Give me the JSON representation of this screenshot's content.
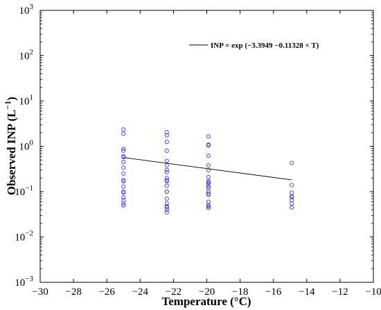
{
  "chart_data": {
    "type": "scatter",
    "title": "",
    "xlabel": "Temperature (°C)",
    "ylabel": "Observed INP (L",
    "ylabel_unit_sup": "−1",
    "ylabel_close": ")",
    "xlim": [
      -30,
      -10
    ],
    "ylim": [
      0.001,
      1000
    ],
    "y_scale": "log",
    "grid": false,
    "legend_position": "top-right",
    "x_ticks": [
      -30,
      -28,
      -26,
      -24,
      -22,
      -20,
      -18,
      -16,
      -14,
      -12,
      -10
    ],
    "x_tick_labels": [
      "−30",
      "−28",
      "−26",
      "−24",
      "−22",
      "−20",
      "−18",
      "−16",
      "−14",
      "−12",
      "−10"
    ],
    "y_ticks": [
      {
        "value": 0.001,
        "base": "10",
        "exp": "−3"
      },
      {
        "value": 0.01,
        "base": "10",
        "exp": "−2"
      },
      {
        "value": 0.1,
        "base": "10",
        "exp": "−1"
      },
      {
        "value": 1,
        "base": "10",
        "exp": "0"
      },
      {
        "value": 10,
        "base": "10",
        "exp": "1"
      },
      {
        "value": 100,
        "base": "10",
        "exp": "2"
      },
      {
        "value": 1000,
        "base": "10",
        "exp": "3"
      }
    ],
    "series": [
      {
        "type": "scatter",
        "color": "#3b3bd6",
        "marker": "open-circle",
        "x": [
          -25,
          -25,
          -25,
          -25,
          -25,
          -25,
          -25,
          -25,
          -25,
          -25,
          -25,
          -25,
          -25,
          -25,
          -25,
          -25,
          -25,
          -25,
          -22.4,
          -22.4,
          -22.4,
          -22.4,
          -22.4,
          -22.4,
          -22.4,
          -22.4,
          -22.4,
          -22.4,
          -22.4,
          -22.4,
          -22.4,
          -22.4,
          -22.4,
          -22.4,
          -22.4,
          -22.4,
          -22.4,
          -22.4,
          -19.9,
          -19.9,
          -19.9,
          -19.9,
          -19.9,
          -19.9,
          -19.9,
          -19.9,
          -19.9,
          -19.9,
          -19.9,
          -19.9,
          -19.9,
          -19.9,
          -19.9,
          -19.9,
          -19.9,
          -19.9,
          -19.9,
          -14.9,
          -14.9,
          -14.9,
          -14.9,
          -14.9,
          -14.9,
          -14.9,
          -14.9
        ],
        "y": [
          2.35,
          1.9,
          0.88,
          0.8,
          0.6,
          0.58,
          0.45,
          0.34,
          0.25,
          0.18,
          0.17,
          0.13,
          0.1,
          0.095,
          0.075,
          0.065,
          0.055,
          0.05,
          2.05,
          1.75,
          1.25,
          0.8,
          0.48,
          0.38,
          0.3,
          0.27,
          0.2,
          0.17,
          0.135,
          0.1,
          0.07,
          0.055,
          0.048,
          0.045,
          0.04,
          0.035,
          0.1,
          0.18,
          1.65,
          1.1,
          1.05,
          0.62,
          0.38,
          0.3,
          0.21,
          0.17,
          0.15,
          0.12,
          0.1,
          0.09,
          0.085,
          0.06,
          0.05,
          0.047,
          0.044,
          0.16,
          0.13,
          0.43,
          0.14,
          0.095,
          0.08,
          0.075,
          0.065,
          0.055,
          0.045
        ]
      },
      {
        "type": "line",
        "color": "#000000",
        "name": "INP = exp (−3.3949 −0.11328 × T)",
        "x": [
          -25,
          -14.9
        ],
        "y": [
          0.567,
          0.182
        ]
      }
    ]
  }
}
